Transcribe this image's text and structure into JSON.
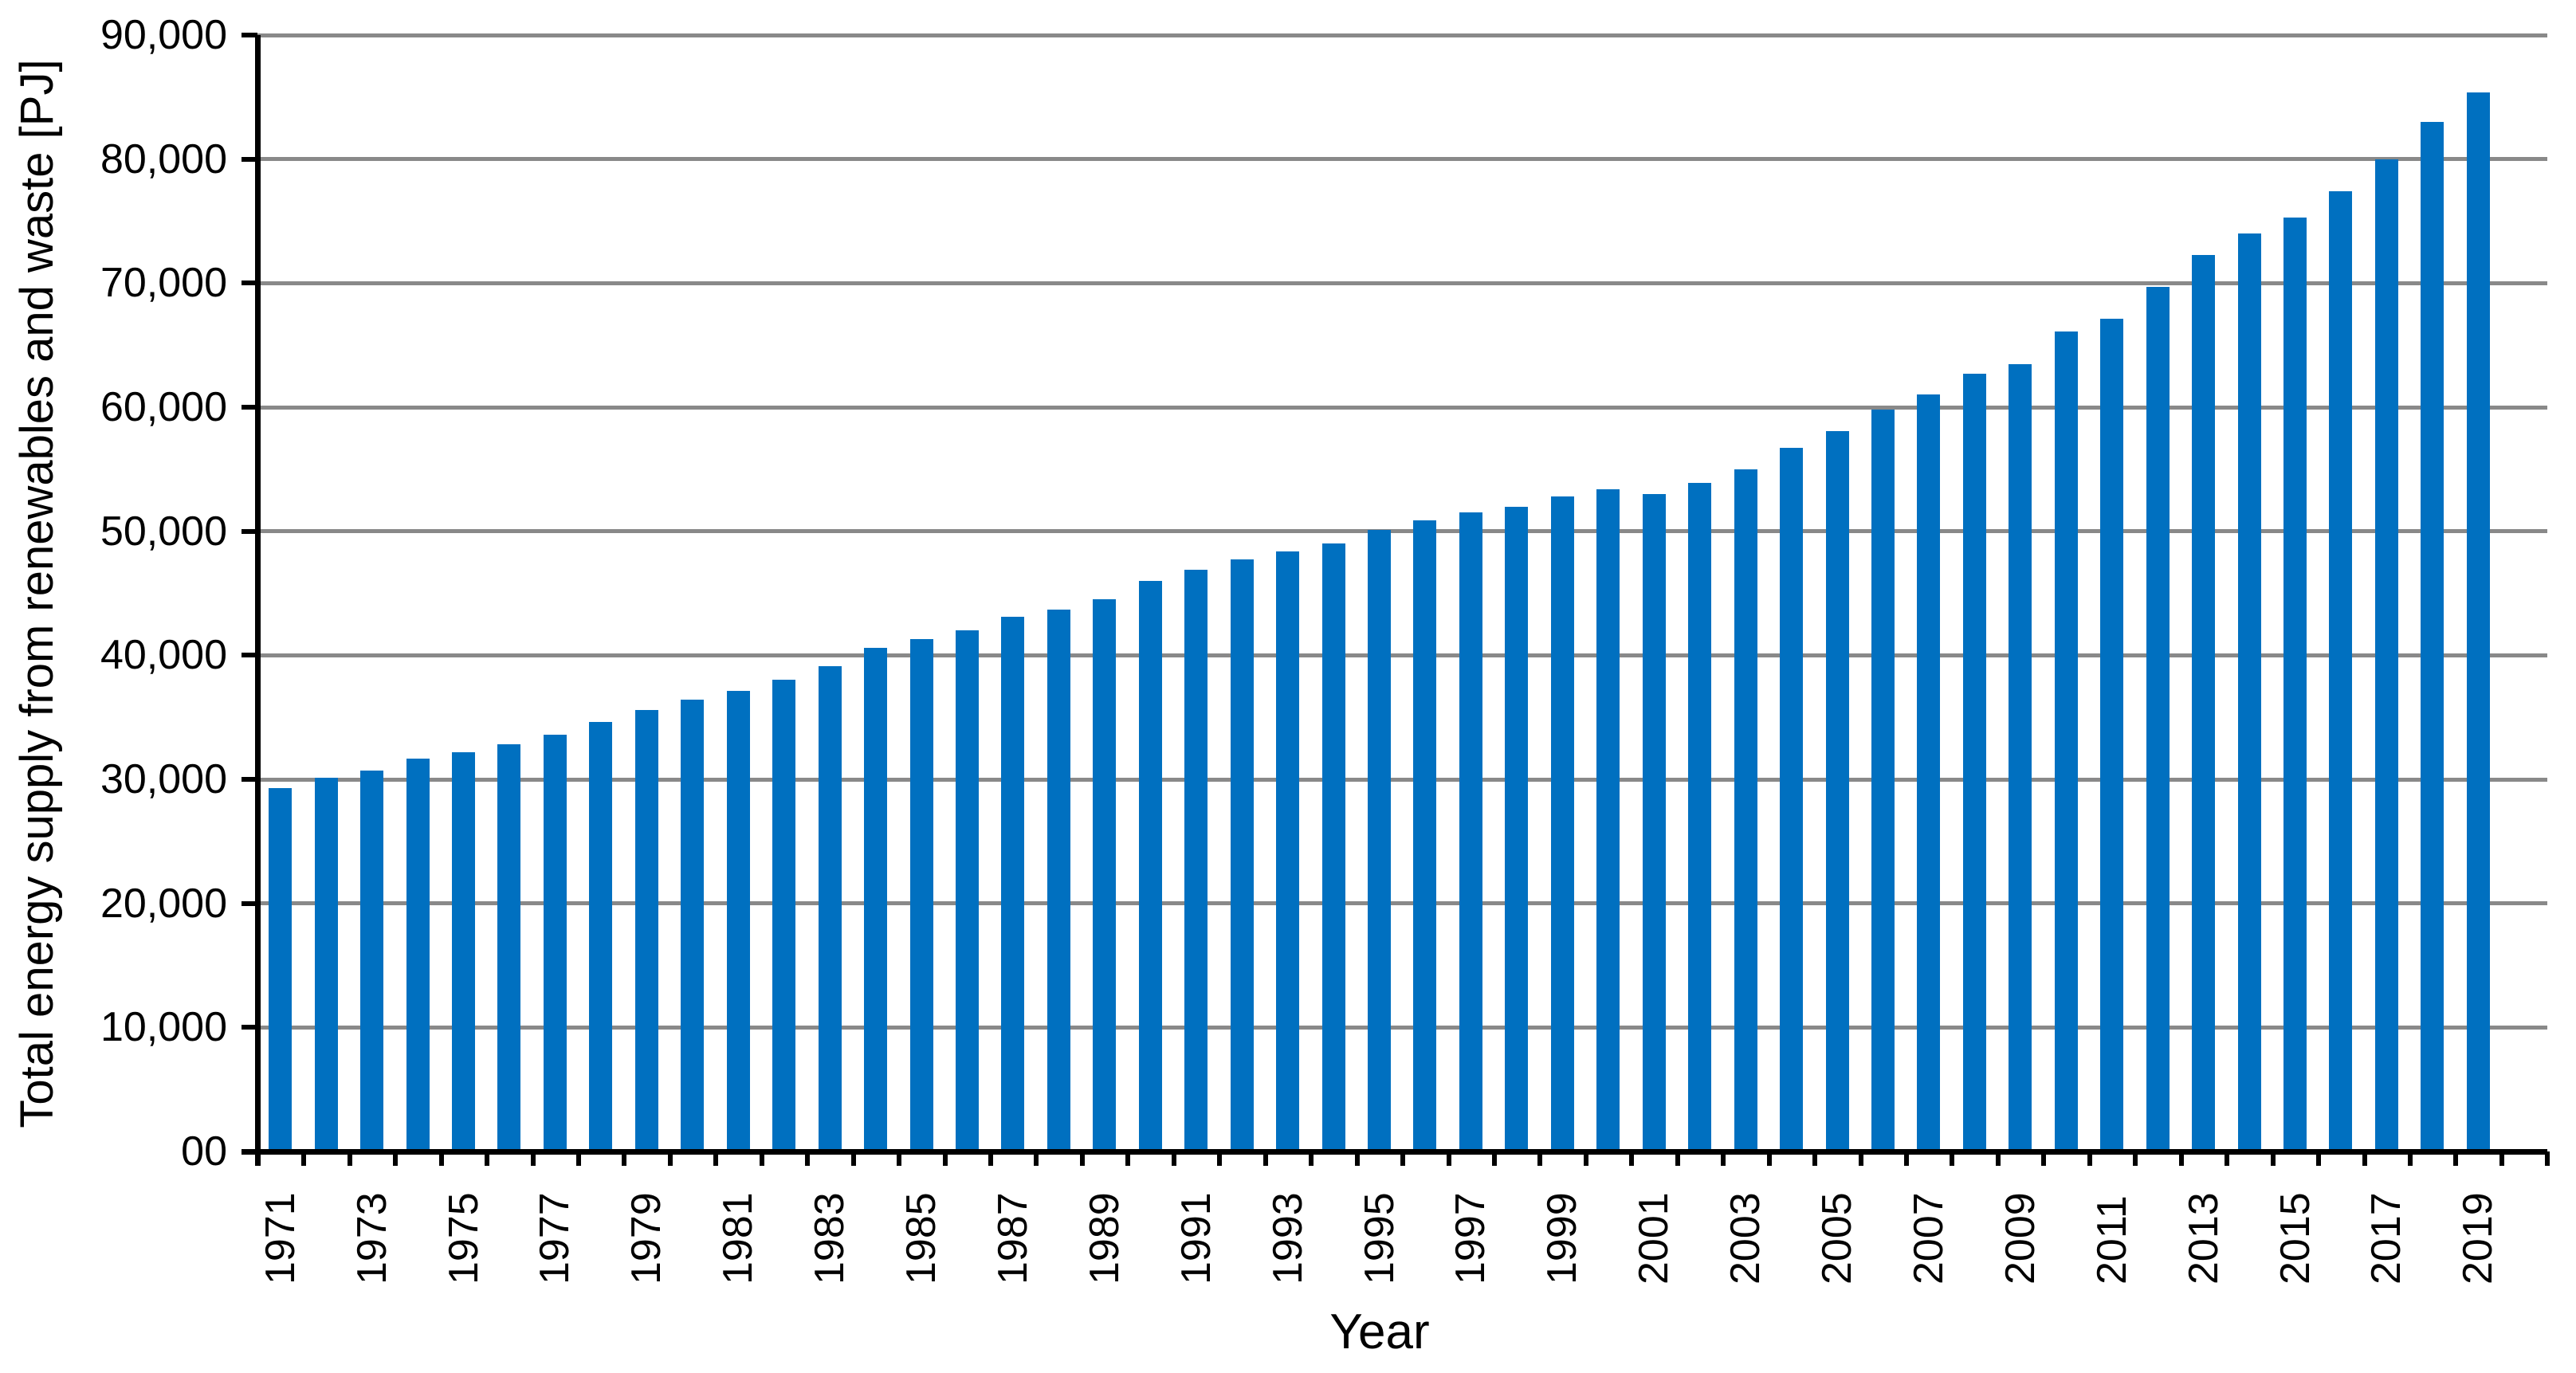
{
  "chart_data": {
    "type": "bar",
    "title": "",
    "xlabel": "Year",
    "ylabel": "Total energy supply from renewables and waste [PJ]",
    "ylim": [
      0,
      90000
    ],
    "ytick_interval": 10000,
    "ytick_labels_bottom_up": [
      "00",
      "10,000",
      "20,000",
      "30,000",
      "40,000",
      "50,000",
      "60,000",
      "70,000",
      "80,000",
      "90,000"
    ],
    "xtick_labels_shown": [
      "1971",
      "1973",
      "1975",
      "1977",
      "1979",
      "1981",
      "1983",
      "1985",
      "1987",
      "1989",
      "1991",
      "1993",
      "1995",
      "1997",
      "1999",
      "2001",
      "2003",
      "2005",
      "2007",
      "2009",
      "2011",
      "2013",
      "2015",
      "2017",
      "2019"
    ],
    "grid": "horizontal",
    "legend": "none",
    "bar_color": "#0070C0",
    "gridline_color": "#898989",
    "axis_color": "#000000",
    "x": [
      1971,
      1972,
      1973,
      1974,
      1975,
      1976,
      1977,
      1978,
      1979,
      1980,
      1981,
      1982,
      1983,
      1984,
      1985,
      1986,
      1987,
      1988,
      1989,
      1990,
      1991,
      1992,
      1993,
      1994,
      1995,
      1996,
      1997,
      1998,
      1999,
      2000,
      2001,
      2002,
      2003,
      2004,
      2005,
      2006,
      2007,
      2008,
      2009,
      2010,
      2011,
      2012,
      2013,
      2014,
      2015,
      2016,
      2017,
      2018,
      2019
    ],
    "values": [
      29300,
      30100,
      30700,
      31700,
      32200,
      32800,
      33600,
      34600,
      35600,
      36400,
      37100,
      38000,
      39100,
      40600,
      41300,
      42000,
      43100,
      43700,
      44500,
      46000,
      46900,
      47700,
      48400,
      49000,
      50100,
      50900,
      51500,
      52000,
      52800,
      53400,
      53000,
      53900,
      55000,
      56700,
      58100,
      59800,
      61000,
      62700,
      63500,
      66100,
      67100,
      69700,
      72300,
      74000,
      75300,
      77400,
      80000,
      83000,
      85400
    ]
  }
}
